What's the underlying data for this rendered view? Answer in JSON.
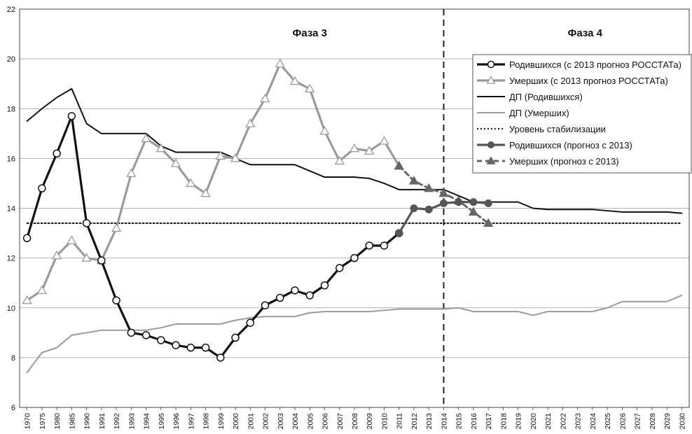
{
  "chart_data": {
    "type": "line",
    "x": [
      "1970",
      "1975",
      "1980",
      "1985",
      "1990",
      "1991",
      "1992",
      "1993",
      "1994",
      "1995",
      "1996",
      "1997",
      "1998",
      "1999",
      "2000",
      "2001",
      "2002",
      "2003",
      "2004",
      "2005",
      "2006",
      "2007",
      "2008",
      "2009",
      "2010",
      "2011",
      "2012",
      "2013",
      "2014",
      "2015",
      "2016",
      "2017",
      "2018",
      "2019",
      "2020",
      "2021",
      "2022",
      "2023",
      "2024",
      "2025",
      "2026",
      "2027",
      "2028",
      "2029",
      "2030"
    ],
    "ylim": [
      6,
      22
    ],
    "yticks": [
      6,
      8,
      10,
      12,
      14,
      16,
      18,
      20,
      22
    ],
    "grid": true,
    "legend_position": "right",
    "annotations": {
      "phase3": "Фаза 3",
      "phase4": "Фаза 4"
    },
    "divider_x": "2014",
    "series": [
      {
        "name": "Родившихся (с 2013 прогноз РОССТАТа)",
        "color": "#111111",
        "style": "solid-thick",
        "marker": "circle-open",
        "values": [
          12.8,
          14.8,
          16.2,
          17.7,
          13.4,
          11.9,
          10.3,
          9.0,
          8.9,
          8.7,
          8.5,
          8.4,
          8.4,
          8.0,
          8.8,
          9.4,
          10.1,
          10.4,
          10.7,
          10.5,
          10.9,
          11.6,
          12.0,
          12.5,
          12.5,
          13.0,
          null,
          null,
          null,
          null,
          null,
          null,
          null,
          null,
          null,
          null,
          null,
          null,
          null,
          null,
          null,
          null,
          null,
          null,
          null
        ]
      },
      {
        "name": "Умерших (с 2013 прогноз РОССТАТа)",
        "color": "#9a9a9a",
        "style": "solid-thick",
        "marker": "triangle-open",
        "values": [
          10.3,
          10.7,
          12.1,
          12.7,
          12.0,
          11.9,
          13.2,
          15.4,
          16.8,
          16.4,
          15.8,
          15.0,
          14.6,
          16.1,
          16.0,
          17.4,
          18.4,
          19.8,
          19.1,
          18.8,
          17.1,
          15.9,
          16.4,
          16.3,
          16.7,
          15.7,
          null,
          null,
          null,
          null,
          null,
          null,
          null,
          null,
          null,
          null,
          null,
          null,
          null,
          null,
          null,
          null,
          null,
          null,
          null
        ]
      },
      {
        "name": "ДП (Родившихся)",
        "color": "#111111",
        "style": "solid",
        "marker": "none",
        "values": [
          17.5,
          18.0,
          18.45,
          18.8,
          17.4,
          17.0,
          17.0,
          17.0,
          17.0,
          16.5,
          16.25,
          16.25,
          16.25,
          16.25,
          16.0,
          15.75,
          15.75,
          15.75,
          15.75,
          15.5,
          15.25,
          15.25,
          15.25,
          15.2,
          15.0,
          14.75,
          14.75,
          14.75,
          14.75,
          14.5,
          14.25,
          14.25,
          14.25,
          14.25,
          14.0,
          13.95,
          13.95,
          13.95,
          13.95,
          13.9,
          13.85,
          13.85,
          13.85,
          13.85,
          13.8
        ]
      },
      {
        "name": "ДП (Умерших)",
        "color": "#9a9a9a",
        "style": "solid",
        "marker": "none",
        "values": [
          7.4,
          8.2,
          8.4,
          8.9,
          9.0,
          9.1,
          9.1,
          9.1,
          9.1,
          9.2,
          9.35,
          9.35,
          9.35,
          9.35,
          9.5,
          9.6,
          9.65,
          9.65,
          9.65,
          9.8,
          9.85,
          9.85,
          9.85,
          9.85,
          9.9,
          9.95,
          9.95,
          9.95,
          9.95,
          10.0,
          9.85,
          9.85,
          9.85,
          9.85,
          9.7,
          9.85,
          9.85,
          9.85,
          9.85,
          10.0,
          10.25,
          10.25,
          10.25,
          10.25,
          10.5
        ]
      },
      {
        "name": "Уровень стабилизации",
        "color": "#111111",
        "style": "dotted",
        "marker": "none",
        "values": [
          13.4,
          13.4,
          13.4,
          13.4,
          13.4,
          13.4,
          13.4,
          13.4,
          13.4,
          13.4,
          13.4,
          13.4,
          13.4,
          13.4,
          13.4,
          13.4,
          13.4,
          13.4,
          13.4,
          13.4,
          13.4,
          13.4,
          13.4,
          13.4,
          13.4,
          13.4,
          13.4,
          13.4,
          13.4,
          13.4,
          13.4,
          13.4,
          13.4,
          13.4,
          13.4,
          13.4,
          13.4,
          13.4,
          13.4,
          13.4,
          13.4,
          13.4,
          13.4,
          13.4,
          13.4
        ]
      },
      {
        "name": "Родившихся (прогноз с 2013)",
        "color": "#555555",
        "style": "solid-thick",
        "marker": "circle-filled",
        "values": [
          null,
          null,
          null,
          null,
          null,
          null,
          null,
          null,
          null,
          null,
          null,
          null,
          null,
          null,
          null,
          null,
          null,
          null,
          null,
          null,
          null,
          null,
          null,
          null,
          null,
          13.0,
          14.0,
          13.95,
          14.2,
          14.25,
          14.25,
          14.2,
          null,
          null,
          null,
          null,
          null,
          null,
          null,
          null,
          null,
          null,
          null,
          null,
          null
        ]
      },
      {
        "name": "Умерших (прогноз с 2013)",
        "color": "#666666",
        "style": "dashed",
        "marker": "triangle-filled",
        "values": [
          null,
          null,
          null,
          null,
          null,
          null,
          null,
          null,
          null,
          null,
          null,
          null,
          null,
          null,
          null,
          null,
          null,
          null,
          null,
          null,
          null,
          null,
          null,
          null,
          null,
          15.7,
          15.1,
          14.8,
          14.6,
          14.3,
          13.85,
          13.4,
          null,
          null,
          null,
          null,
          null,
          null,
          null,
          null,
          null,
          null,
          null,
          null,
          null
        ]
      }
    ]
  }
}
